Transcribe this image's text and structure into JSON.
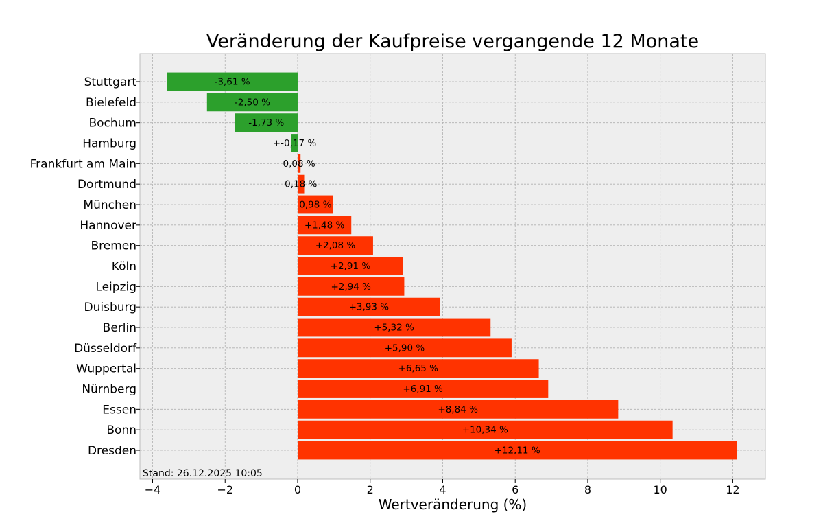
{
  "chart_data": {
    "type": "bar",
    "orientation": "horizontal",
    "title": "Veränderung der Kaufpreise vergangende 12 Monate",
    "xlabel": "Wertveränderung (%)",
    "ylabel": "",
    "xlim": [
      -4.35,
      12.9
    ],
    "xticks": [
      -4,
      -2,
      0,
      2,
      4,
      6,
      8,
      10,
      12
    ],
    "xtick_labels": [
      "−4",
      "−2",
      "0",
      "2",
      "4",
      "6",
      "8",
      "10",
      "12"
    ],
    "grid": true,
    "colors": {
      "negative": "#2ca02c",
      "positive": "#ff3300",
      "plot_background": "#eeeeee"
    },
    "footnote": "Stand: 26.12.2025 10:05",
    "bars": [
      {
        "category": "Stuttgart",
        "value": -3.61,
        "label": "-3,61 %"
      },
      {
        "category": "Bielefeld",
        "value": -2.5,
        "label": "-2,50 %"
      },
      {
        "category": "Bochum",
        "value": -1.73,
        "label": "-1,73 %"
      },
      {
        "category": "Hamburg",
        "value": -0.17,
        "label": "+-0,17 %"
      },
      {
        "category": "Frankfurt am Main",
        "value": 0.08,
        "label": "0,08 %"
      },
      {
        "category": "Dortmund",
        "value": 0.18,
        "label": "0,18 %"
      },
      {
        "category": "München",
        "value": 0.98,
        "label": "0,98 %"
      },
      {
        "category": "Hannover",
        "value": 1.48,
        "label": "+1,48 %"
      },
      {
        "category": "Bremen",
        "value": 2.08,
        "label": "+2,08 %"
      },
      {
        "category": "Köln",
        "value": 2.91,
        "label": "+2,91 %"
      },
      {
        "category": "Leipzig",
        "value": 2.94,
        "label": "+2,94 %"
      },
      {
        "category": "Duisburg",
        "value": 3.93,
        "label": "+3,93 %"
      },
      {
        "category": "Berlin",
        "value": 5.32,
        "label": "+5,32 %"
      },
      {
        "category": "Düsseldorf",
        "value": 5.9,
        "label": "+5,90 %"
      },
      {
        "category": "Wuppertal",
        "value": 6.65,
        "label": "+6,65 %"
      },
      {
        "category": "Nürnberg",
        "value": 6.91,
        "label": "+6,91 %"
      },
      {
        "category": "Essen",
        "value": 8.84,
        "label": "+8,84 %"
      },
      {
        "category": "Bonn",
        "value": 10.34,
        "label": "+10,34 %"
      },
      {
        "category": "Dresden",
        "value": 12.11,
        "label": "+12,11 %"
      }
    ]
  }
}
